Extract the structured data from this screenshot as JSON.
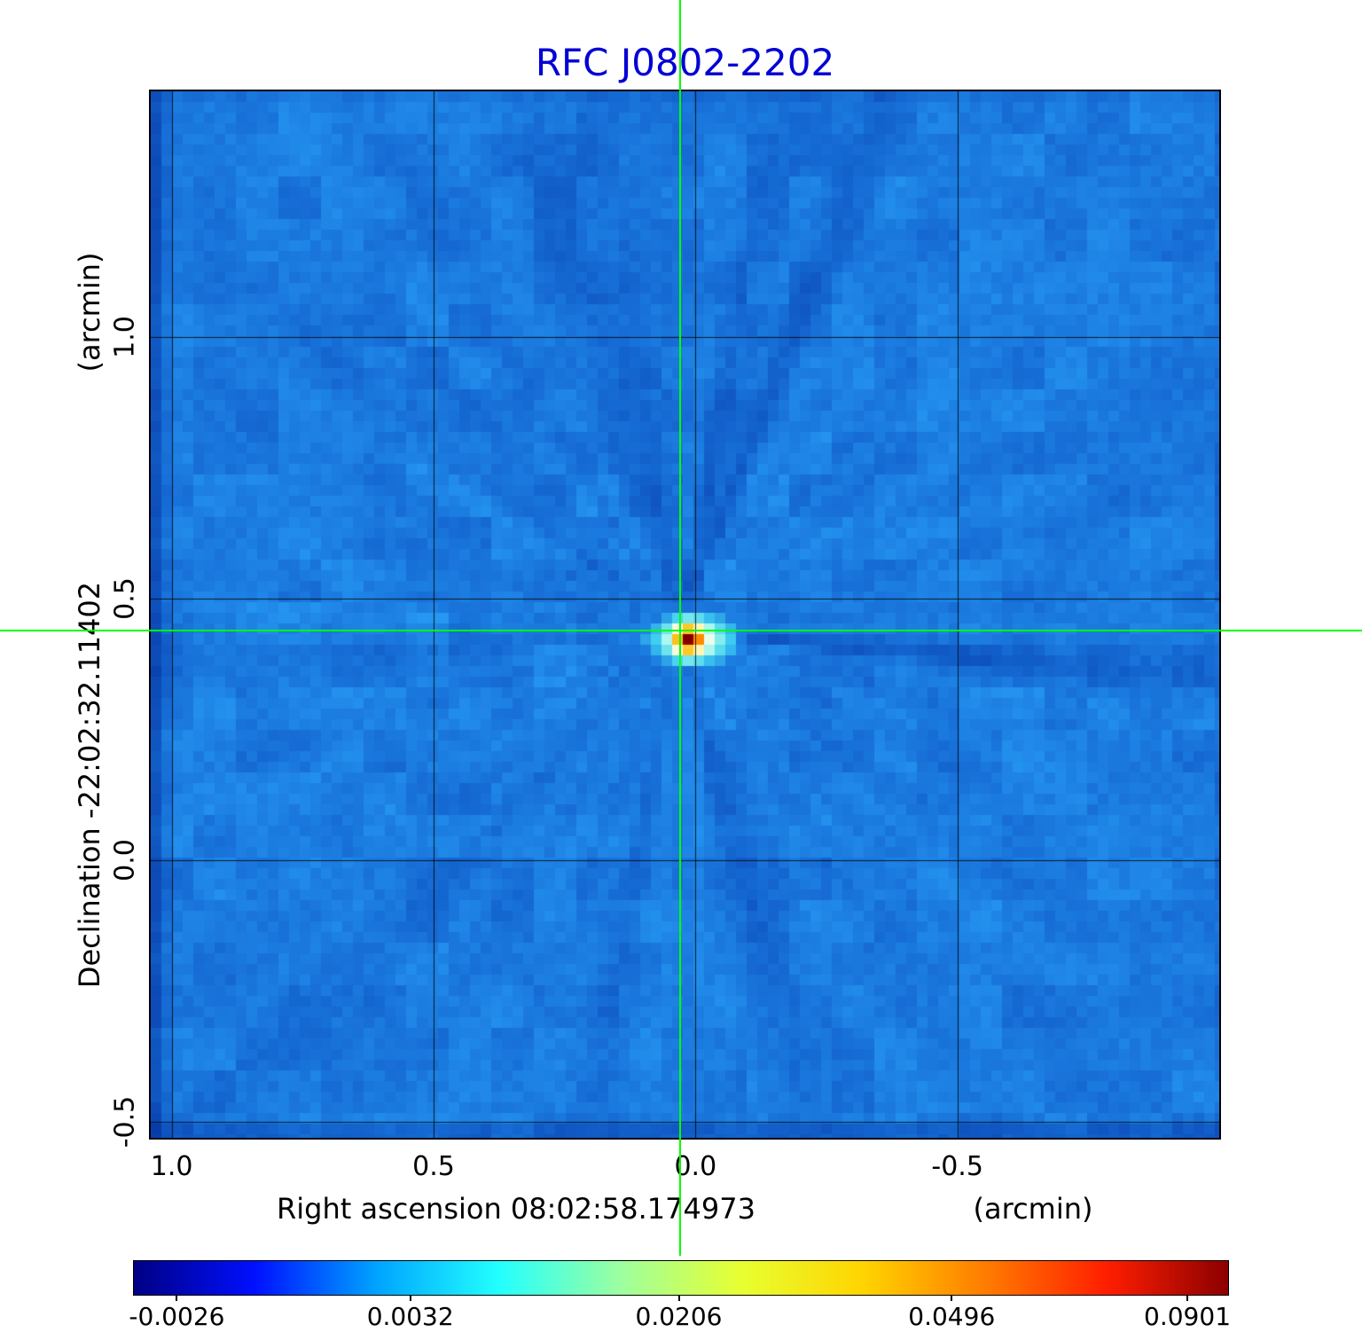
{
  "chart_data": {
    "type": "heatmap",
    "title": "RFC J0802-2202",
    "title_color": "#0000d4",
    "xlabel": "Right ascension  08:02:58.174973",
    "xunit": "(arcmin)",
    "ylabel": "Declination  -22:02:32.11402",
    "yunit": "(arcmin)",
    "x_range": [
      1.04,
      -1.0
    ],
    "y_range": [
      1.47,
      -0.53
    ],
    "x_ticks": [
      1.0,
      0.5,
      0.0,
      -0.5
    ],
    "x_tick_labels": [
      "1.0",
      "0.5",
      "0.0",
      "-0.5"
    ],
    "y_ticks": [
      1.0,
      0.5,
      0.0,
      -0.5
    ],
    "y_tick_labels": [
      "1.0",
      "0.5",
      "0.0",
      "-0.5"
    ],
    "grid": true,
    "background_color": "#1c7ade",
    "crosshair": {
      "x": 0.03,
      "y": 0.44,
      "color": "#00ff00"
    },
    "source_center": {
      "x": 0.03,
      "y": 0.44
    },
    "colorbar": {
      "orientation": "horizontal",
      "tick_labels": [
        "-0.0026",
        "0.0032",
        "0.0206",
        "0.0496",
        "0.0901"
      ],
      "tick_positions": [
        0.04,
        0.253,
        0.498,
        0.747,
        0.962
      ],
      "gradient": [
        "#000084",
        "#0010ff",
        "#00a4ff",
        "#22ffff",
        "#9cffa0",
        "#e8ff30",
        "#ffd400",
        "#ff7c00",
        "#ff1e00",
        "#8c0000"
      ]
    }
  }
}
